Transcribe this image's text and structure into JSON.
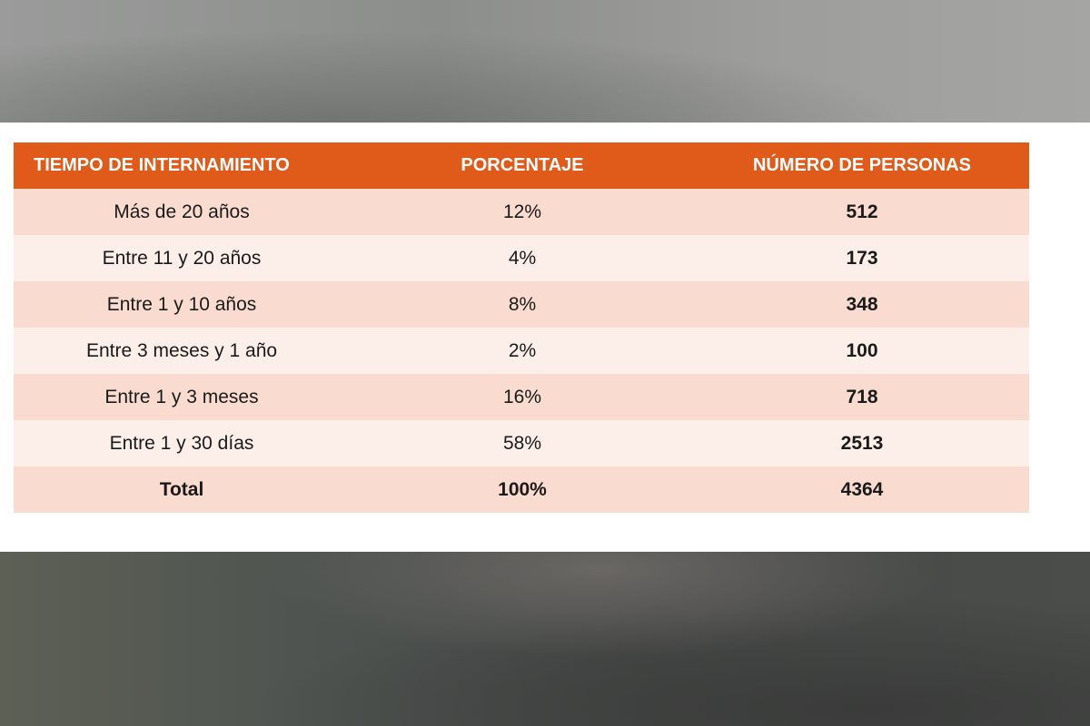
{
  "table": {
    "header": [
      "TIEMPO DE INTERNAMIENTO",
      "PORCENTAJE",
      "NÚMERO DE PERSONAS"
    ],
    "rows": [
      [
        "Más de 20 años",
        "12%",
        "512"
      ],
      [
        "Entre 11 y 20 años",
        "4%",
        "173"
      ],
      [
        "Entre 1 y 10 años",
        "8%",
        "348"
      ],
      [
        "Entre 3 meses y 1 año",
        "2%",
        "100"
      ],
      [
        "Entre 1 y 3 meses",
        "16%",
        "718"
      ],
      [
        "Entre 1 y 30 días",
        "58%",
        "2513"
      ],
      [
        "Total",
        "100%",
        "4364"
      ]
    ]
  }
}
